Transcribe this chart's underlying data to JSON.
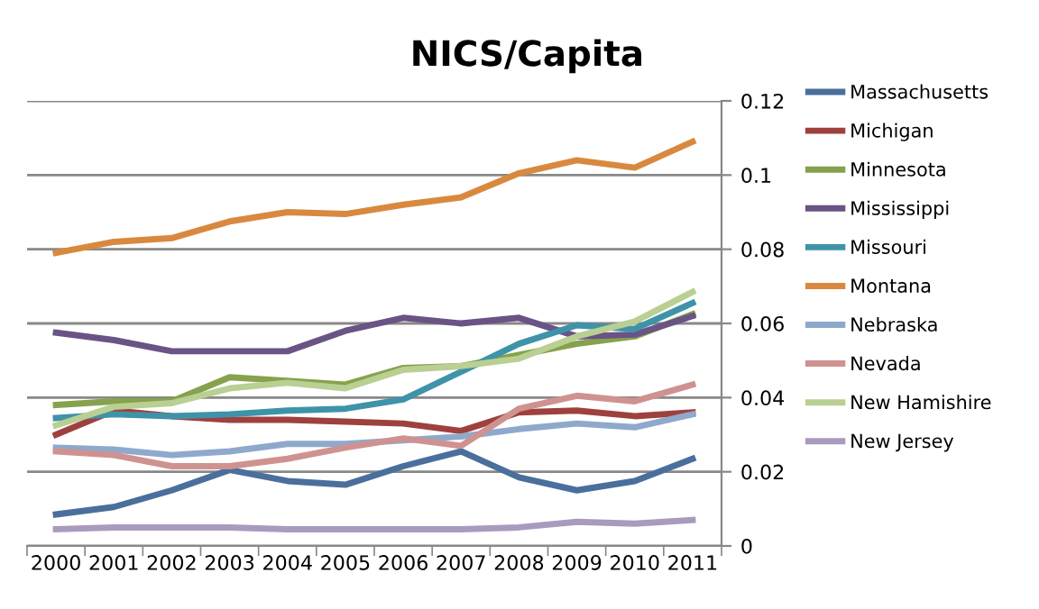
{
  "chart_data": {
    "type": "line",
    "title": "NICS/Capita",
    "categories": [
      "2000",
      "2001",
      "2002",
      "2003",
      "2004",
      "2005",
      "2006",
      "2007",
      "2008",
      "2009",
      "2010",
      "2011"
    ],
    "ylim": [
      0,
      0.12
    ],
    "yticks": [
      {
        "value": 0,
        "label": "0"
      },
      0.02,
      0.04,
      0.06,
      0.08,
      {
        "value": 0.1,
        "label": "0.1"
      },
      0.12
    ],
    "grid": "y",
    "legend": "right",
    "marker": "none",
    "line_style": "solid",
    "series": [
      {
        "name": "Massachusetts",
        "color": "#4a6f9c",
        "values": [
          0.0085,
          0.0105,
          0.015,
          0.0205,
          0.0175,
          0.0165,
          0.0215,
          0.0255,
          0.0185,
          0.015,
          0.0175,
          0.0235
        ]
      },
      {
        "name": "Michigan",
        "color": "#9e413e",
        "values": [
          0.03,
          0.0365,
          0.035,
          0.034,
          0.034,
          0.0335,
          0.033,
          0.031,
          0.036,
          0.0365,
          0.035,
          0.036
        ]
      },
      {
        "name": "Minnesota",
        "color": "#86a24c",
        "values": [
          0.038,
          0.039,
          0.039,
          0.0455,
          0.0445,
          0.0435,
          0.048,
          0.0485,
          0.0515,
          0.0545,
          0.0565,
          0.0625
        ]
      },
      {
        "name": "Mississippi",
        "color": "#6a5385",
        "values": [
          0.0575,
          0.0555,
          0.0525,
          0.0525,
          0.0525,
          0.058,
          0.0615,
          0.06,
          0.0615,
          0.0565,
          0.057,
          0.062
        ]
      },
      {
        "name": "Missouri",
        "color": "#3f93a8",
        "values": [
          0.0345,
          0.0355,
          0.035,
          0.0355,
          0.0365,
          0.037,
          0.0395,
          0.047,
          0.0545,
          0.0595,
          0.0585,
          0.0655
        ]
      },
      {
        "name": "Montana",
        "color": "#d9893f",
        "values": [
          0.079,
          0.082,
          0.083,
          0.0875,
          0.09,
          0.0895,
          0.092,
          0.094,
          0.1005,
          0.104,
          0.102,
          0.109
        ]
      },
      {
        "name": "Nebraska",
        "color": "#8fa9cc",
        "values": [
          0.0265,
          0.026,
          0.0245,
          0.0255,
          0.0275,
          0.0275,
          0.0285,
          0.0295,
          0.0315,
          0.033,
          0.032,
          0.0355
        ]
      },
      {
        "name": "Nevada",
        "color": "#cf9290",
        "values": [
          0.0255,
          0.0245,
          0.0215,
          0.0215,
          0.0235,
          0.0265,
          0.029,
          0.027,
          0.037,
          0.0405,
          0.039,
          0.0435
        ]
      },
      {
        "name": "New Hamishire",
        "color": "#b9cf93",
        "values": [
          0.0325,
          0.0375,
          0.0385,
          0.0425,
          0.044,
          0.0425,
          0.0475,
          0.0485,
          0.0505,
          0.0565,
          0.0605,
          0.0685
        ]
      },
      {
        "name": "New Jersey",
        "color": "#a99bbd",
        "values": [
          0.0045,
          0.005,
          0.005,
          0.005,
          0.0045,
          0.0045,
          0.0045,
          0.0045,
          0.005,
          0.0065,
          0.006,
          0.007
        ]
      }
    ]
  }
}
